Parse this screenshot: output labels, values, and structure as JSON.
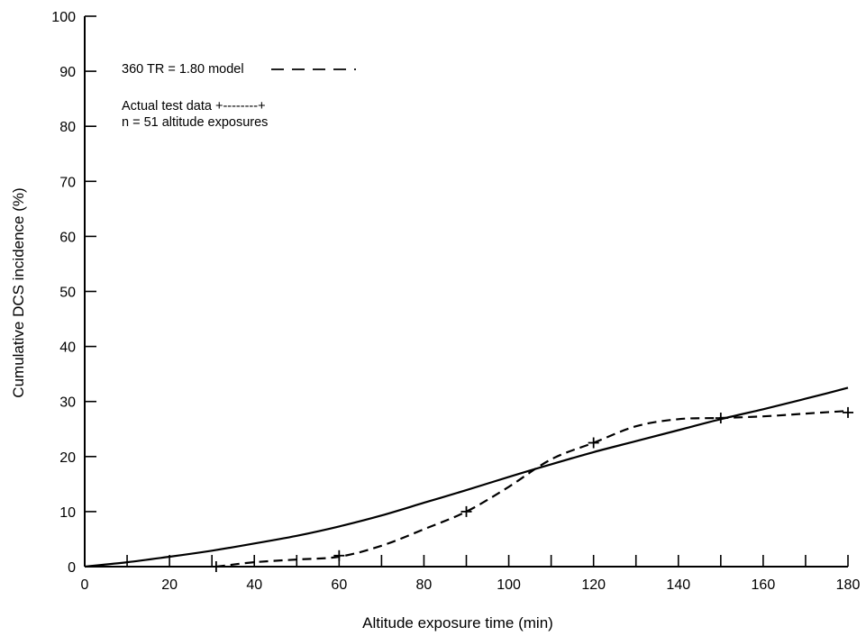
{
  "chart_data": {
    "type": "line",
    "xlabel": "Altitude exposure time (min)",
    "ylabel": "Cumulative DCS incidence (%)",
    "xlim": [
      0,
      180
    ],
    "ylim": [
      0,
      100
    ],
    "x_ticks": [
      "0",
      "20",
      "40",
      "60",
      "80",
      "100",
      "120",
      "140",
      "160",
      "180"
    ],
    "y_ticks": [
      "0",
      "10",
      "20",
      "30",
      "40",
      "50",
      "60",
      "70",
      "80",
      "90",
      "100"
    ],
    "grid": false,
    "legend": {
      "model_label": "360 TR = 1.80 model",
      "actual_label": "Actual test data +--------+",
      "n_label": "n = 51 altitude exposures"
    },
    "series": [
      {
        "style": "solid",
        "x": [
          0,
          10,
          20,
          30,
          40,
          50,
          60,
          70,
          80,
          90,
          100,
          110,
          120,
          130,
          140,
          150,
          160,
          170,
          180
        ],
        "y": [
          0,
          0.8,
          1.8,
          2.9,
          4.2,
          5.6,
          7.3,
          9.3,
          11.6,
          13.9,
          16.3,
          18.6,
          20.8,
          22.8,
          24.8,
          26.8,
          28.6,
          30.5,
          32.5
        ]
      },
      {
        "style": "dashed",
        "x": [
          31,
          40,
          50,
          60,
          70,
          80,
          90,
          100,
          110,
          120,
          130,
          140,
          150,
          160,
          170,
          180
        ],
        "y": [
          0,
          0.8,
          1.3,
          1.8,
          3.8,
          6.8,
          10,
          14.5,
          19.5,
          22.5,
          25.5,
          26.8,
          27,
          27.3,
          27.8,
          28.3
        ]
      }
    ],
    "data_points": {
      "x": [
        31,
        60,
        90,
        120,
        150,
        180
      ],
      "y": [
        0,
        2,
        10,
        22.5,
        27,
        28
      ]
    }
  }
}
